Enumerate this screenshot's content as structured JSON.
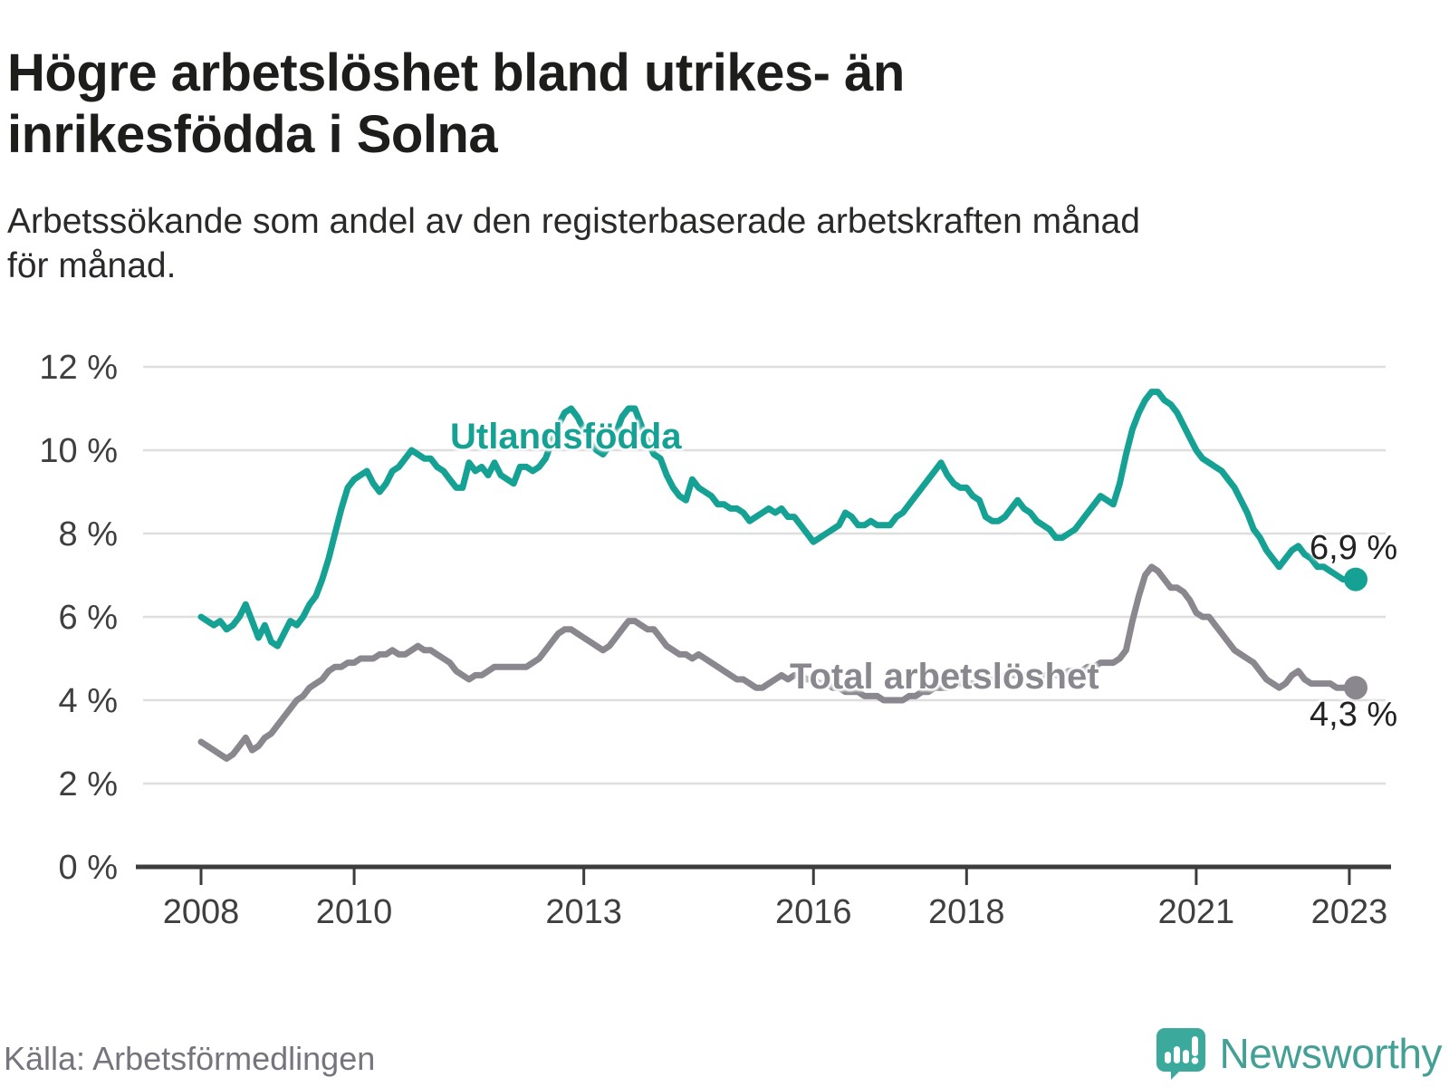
{
  "header": {
    "title": "Högre arbetslöshet bland utrikes- än inrikesfödda i Solna",
    "title_lines": [
      "Högre arbetslöshet bland utrikes- än",
      "inrikesfödda i Solna"
    ],
    "subtitle": "Arbetssökande som andel av den registerbaserade arbetskraften månad för månad.",
    "subtitle_lines": [
      "Arbetssökande som andel av den registerbaserade arbetskraften månad",
      "för månad."
    ]
  },
  "footer": {
    "source": "Källa: Arbetsförmedlingen",
    "logo_text": "Newsworthy"
  },
  "colors": {
    "teal": "#16A195",
    "gray": "#8A888E",
    "grid": "#DEDEDE",
    "axis": "#3C3C3C",
    "tick_text": "#3F3F3F",
    "title_text": "#1D1D1B",
    "muted_text": "#76747C",
    "logo_teal": "#44A096"
  },
  "chart_data": {
    "type": "line",
    "title": "Högre arbetslöshet bland utrikes- än inrikesfödda i Solna",
    "xlabel": "",
    "ylabel": "Arbetssökande som andel av den registerbaserade arbetskraften",
    "unit": "%",
    "grid": "horizontal",
    "legend_position": "inline-labels",
    "x_start_year": 2008,
    "x_step": "monthly",
    "x_end_label": "2023",
    "xlim": [
      2007.9,
      2023.5
    ],
    "ylim": [
      0,
      12
    ],
    "y_ticks": [
      {
        "v": 0,
        "label": "0 %"
      },
      {
        "v": 2,
        "label": "2 %"
      },
      {
        "v": 4,
        "label": "4 %"
      },
      {
        "v": 6,
        "label": "6 %"
      },
      {
        "v": 8,
        "label": "8 %"
      },
      {
        "v": 10,
        "label": "10 %"
      },
      {
        "v": 12,
        "label": "12 %"
      }
    ],
    "x_ticks": [
      {
        "year": 2008,
        "label": "2008"
      },
      {
        "year": 2010,
        "label": "2010"
      },
      {
        "year": 2013,
        "label": "2013"
      },
      {
        "year": 2016,
        "label": "2016"
      },
      {
        "year": 2018,
        "label": "2018"
      },
      {
        "year": 2021,
        "label": "2021"
      },
      {
        "year": 2023,
        "label": "2023"
      }
    ],
    "series": [
      {
        "name": "Utlandsfödda",
        "color": "#16A195",
        "end_label": "6,9 %",
        "end_value": 6.9,
        "values": [
          6.0,
          5.9,
          5.8,
          5.9,
          5.7,
          5.8,
          6.0,
          6.3,
          5.9,
          5.5,
          5.8,
          5.4,
          5.3,
          5.6,
          5.9,
          5.8,
          6.0,
          6.3,
          6.5,
          6.9,
          7.4,
          8.0,
          8.6,
          9.1,
          9.3,
          9.4,
          9.5,
          9.2,
          9.0,
          9.2,
          9.5,
          9.6,
          9.8,
          10.0,
          9.9,
          9.8,
          9.8,
          9.6,
          9.5,
          9.3,
          9.1,
          9.1,
          9.7,
          9.5,
          9.6,
          9.4,
          9.7,
          9.4,
          9.3,
          9.2,
          9.6,
          9.6,
          9.5,
          9.6,
          9.8,
          10.2,
          10.6,
          10.9,
          11.0,
          10.8,
          10.5,
          10.2,
          10.0,
          9.9,
          10.1,
          10.4,
          10.8,
          11.0,
          11.0,
          10.6,
          10.2,
          9.9,
          9.8,
          9.4,
          9.1,
          8.9,
          8.8,
          9.3,
          9.1,
          9.0,
          8.9,
          8.7,
          8.7,
          8.6,
          8.6,
          8.5,
          8.3,
          8.4,
          8.5,
          8.6,
          8.5,
          8.6,
          8.4,
          8.4,
          8.2,
          8.0,
          7.8,
          7.9,
          8.0,
          8.1,
          8.2,
          8.5,
          8.4,
          8.2,
          8.2,
          8.3,
          8.2,
          8.2,
          8.2,
          8.4,
          8.5,
          8.7,
          8.9,
          9.1,
          9.3,
          9.5,
          9.7,
          9.4,
          9.2,
          9.1,
          9.1,
          8.9,
          8.8,
          8.4,
          8.3,
          8.3,
          8.4,
          8.6,
          8.8,
          8.6,
          8.5,
          8.3,
          8.2,
          8.1,
          7.9,
          7.9,
          8.0,
          8.1,
          8.3,
          8.5,
          8.7,
          8.9,
          8.8,
          8.7,
          9.2,
          9.9,
          10.5,
          10.9,
          11.2,
          11.4,
          11.4,
          11.2,
          11.1,
          10.9,
          10.6,
          10.3,
          10.0,
          9.8,
          9.7,
          9.6,
          9.5,
          9.3,
          9.1,
          8.8,
          8.5,
          8.1,
          7.9,
          7.6,
          7.4,
          7.2,
          7.4,
          7.6,
          7.7,
          7.5,
          7.4,
          7.2,
          7.2,
          7.1,
          7.0,
          6.9,
          6.9,
          6.9
        ]
      },
      {
        "name": "Total arbetslöshet",
        "color": "#8A888E",
        "end_label": "4,3 %",
        "end_value": 4.3,
        "values": [
          3.0,
          2.9,
          2.8,
          2.7,
          2.6,
          2.7,
          2.9,
          3.1,
          2.8,
          2.9,
          3.1,
          3.2,
          3.4,
          3.6,
          3.8,
          4.0,
          4.1,
          4.3,
          4.4,
          4.5,
          4.7,
          4.8,
          4.8,
          4.9,
          4.9,
          5.0,
          5.0,
          5.0,
          5.1,
          5.1,
          5.2,
          5.1,
          5.1,
          5.2,
          5.3,
          5.2,
          5.2,
          5.1,
          5.0,
          4.9,
          4.7,
          4.6,
          4.5,
          4.6,
          4.6,
          4.7,
          4.8,
          4.8,
          4.8,
          4.8,
          4.8,
          4.8,
          4.9,
          5.0,
          5.2,
          5.4,
          5.6,
          5.7,
          5.7,
          5.6,
          5.5,
          5.4,
          5.3,
          5.2,
          5.3,
          5.5,
          5.7,
          5.9,
          5.9,
          5.8,
          5.7,
          5.7,
          5.5,
          5.3,
          5.2,
          5.1,
          5.1,
          5.0,
          5.1,
          5.0,
          4.9,
          4.8,
          4.7,
          4.6,
          4.5,
          4.5,
          4.4,
          4.3,
          4.3,
          4.4,
          4.5,
          4.6,
          4.5,
          4.6,
          4.6,
          4.5,
          4.5,
          4.4,
          4.4,
          4.3,
          4.3,
          4.2,
          4.2,
          4.2,
          4.1,
          4.1,
          4.1,
          4.0,
          4.0,
          4.0,
          4.0,
          4.1,
          4.1,
          4.2,
          4.2,
          4.3,
          4.3,
          4.3,
          4.4,
          4.4,
          4.4,
          4.4,
          4.4,
          4.5,
          4.5,
          4.5,
          4.6,
          4.6,
          4.6,
          4.6,
          4.6,
          4.6,
          4.6,
          4.6,
          4.6,
          4.6,
          4.7,
          4.7,
          4.7,
          4.8,
          4.8,
          4.9,
          4.9,
          4.9,
          5.0,
          5.2,
          5.9,
          6.5,
          7.0,
          7.2,
          7.1,
          6.9,
          6.7,
          6.7,
          6.6,
          6.4,
          6.1,
          6.0,
          6.0,
          5.8,
          5.6,
          5.4,
          5.2,
          5.1,
          5.0,
          4.9,
          4.7,
          4.5,
          4.4,
          4.3,
          4.4,
          4.6,
          4.7,
          4.5,
          4.4,
          4.4,
          4.4,
          4.4,
          4.3,
          4.3,
          4.3,
          4.3
        ]
      }
    ]
  }
}
